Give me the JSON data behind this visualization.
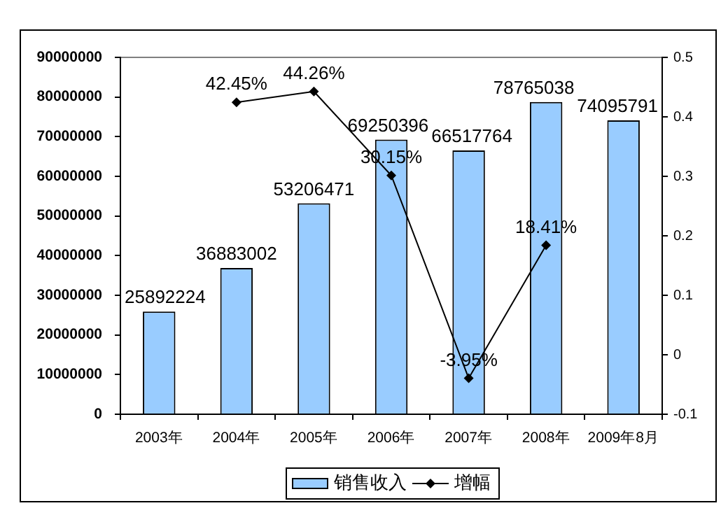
{
  "chart_data": {
    "type": "bar",
    "categories": [
      "2003年",
      "2004年",
      "2005年",
      "2006年",
      "2007年",
      "2008年",
      "2009年8月"
    ],
    "series": [
      {
        "name": "销售收入",
        "color": "#99ccff",
        "values": [
          25892224,
          36883002,
          53206471,
          69250396,
          66517764,
          78765038,
          74095791
        ],
        "value_labels": [
          "25892224",
          "36883002",
          "53206471",
          "69250396",
          "66517764",
          "78765038",
          "74095791"
        ]
      },
      {
        "name": "增幅",
        "type": "line",
        "axis": "y2",
        "color": "#000000",
        "values": [
          null,
          0.4245,
          0.4426,
          0.3015,
          -0.0395,
          0.1841,
          null
        ],
        "value_labels": [
          null,
          "42.45%",
          "44.26%",
          "30.15%",
          "-3.95%",
          "18.41%",
          null
        ]
      }
    ],
    "ylim": [
      0,
      90000000
    ],
    "yticks": [
      0,
      10000000,
      20000000,
      30000000,
      40000000,
      50000000,
      60000000,
      70000000,
      80000000,
      90000000
    ],
    "y2lim": [
      -0.1,
      0.5
    ],
    "y2ticks": [
      -0.1,
      0,
      0.1,
      0.2,
      0.3,
      0.4,
      0.5
    ],
    "grid": false,
    "legend": "bottom",
    "marker": "diamond",
    "line_style": "solid"
  }
}
